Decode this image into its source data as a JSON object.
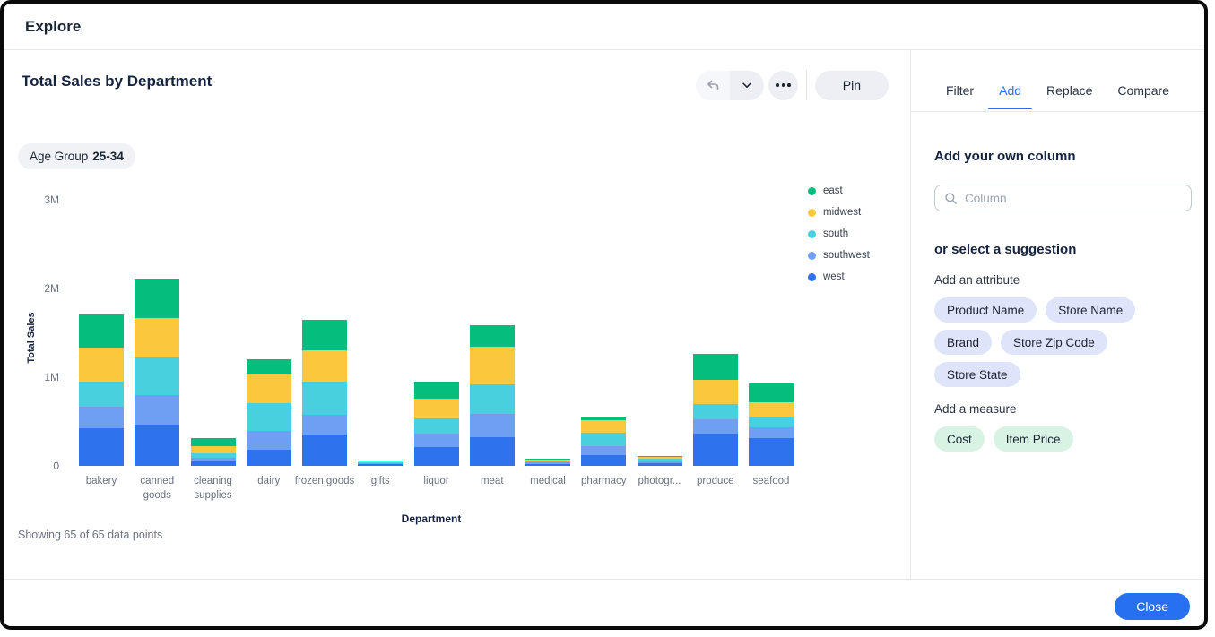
{
  "window": {
    "title": "Explore"
  },
  "chart_panel": {
    "title": "Total Sales by Department",
    "filter_chip": {
      "label": "Age Group",
      "value": "25-34"
    },
    "toolbar": {
      "undo_icon": "undo-icon",
      "chevron_icon": "chevron-down-icon",
      "more_icon": "ellipsis-icon",
      "pin_label": "Pin"
    },
    "footnote": "Showing 65 of 65 data points"
  },
  "chart_data": {
    "type": "bar",
    "stacked": true,
    "title": "Total Sales by Department",
    "xlabel": "Department",
    "ylabel": "Total Sales",
    "value_unit": "millions",
    "ylim_millions": [
      0,
      3
    ],
    "yticks": [
      "0",
      "1M",
      "2M",
      "3M"
    ],
    "grid": false,
    "legend_position": "right",
    "categories": [
      "bakery",
      "canned goods",
      "cleaning supplies",
      "dairy",
      "frozen goods",
      "gifts",
      "liquor",
      "meat",
      "medical",
      "pharmacy",
      "photogr...",
      "produce",
      "seafood"
    ],
    "stack_order_bottom_to_top": [
      "west",
      "southwest",
      "south",
      "midwest",
      "east"
    ],
    "series": [
      {
        "name": "east",
        "color": "#05BE7E",
        "values_millions": [
          0.38,
          0.44,
          0.09,
          0.16,
          0.35,
          0.01,
          0.19,
          0.25,
          0.005,
          0.03,
          0.01,
          0.29,
          0.21
        ]
      },
      {
        "name": "midwest",
        "color": "#FBC83D",
        "values_millions": [
          0.38,
          0.45,
          0.08,
          0.33,
          0.35,
          0.01,
          0.22,
          0.42,
          0.025,
          0.15,
          0.025,
          0.27,
          0.17
        ]
      },
      {
        "name": "south",
        "color": "#48D0DF",
        "values_millions": [
          0.28,
          0.42,
          0.05,
          0.32,
          0.37,
          0.01,
          0.18,
          0.33,
          0.015,
          0.15,
          0.03,
          0.17,
          0.12
        ]
      },
      {
        "name": "southwest",
        "color": "#6F9FF2",
        "values_millions": [
          0.25,
          0.34,
          0.04,
          0.21,
          0.23,
          0.01,
          0.15,
          0.27,
          0.015,
          0.1,
          0.02,
          0.17,
          0.12
        ]
      },
      {
        "name": "west",
        "color": "#2E72EE",
        "values_millions": [
          0.42,
          0.46,
          0.05,
          0.18,
          0.35,
          0.02,
          0.21,
          0.32,
          0.025,
          0.12,
          0.03,
          0.36,
          0.31
        ]
      }
    ]
  },
  "side_panel": {
    "tabs": [
      {
        "label": "Filter",
        "active": false
      },
      {
        "label": "Add",
        "active": true
      },
      {
        "label": "Replace",
        "active": false
      },
      {
        "label": "Compare",
        "active": false
      }
    ],
    "add_section_title": "Add your own column",
    "search": {
      "placeholder": "Column",
      "value": "",
      "icon": "search-icon"
    },
    "suggestion_title": "or select a suggestion",
    "attribute_group": {
      "label": "Add an attribute",
      "chips": [
        "Product Name",
        "Store Name",
        "Brand",
        "Store Zip Code",
        "Store State"
      ]
    },
    "measure_group": {
      "label": "Add a measure",
      "chips": [
        "Cost",
        "Item Price"
      ]
    }
  },
  "footer": {
    "close_label": "Close"
  },
  "colors": {
    "accent": "#2770ef",
    "east": "#05BE7E",
    "midwest": "#FBC83D",
    "south": "#48D0DF",
    "southwest": "#6F9FF2",
    "west": "#2E72EE",
    "attribute_chip_bg": "#dee5fa",
    "measure_chip_bg": "#d8f2e3",
    "neutral_chip_bg": "#f0f2f5",
    "border": "#e7e9ed"
  }
}
